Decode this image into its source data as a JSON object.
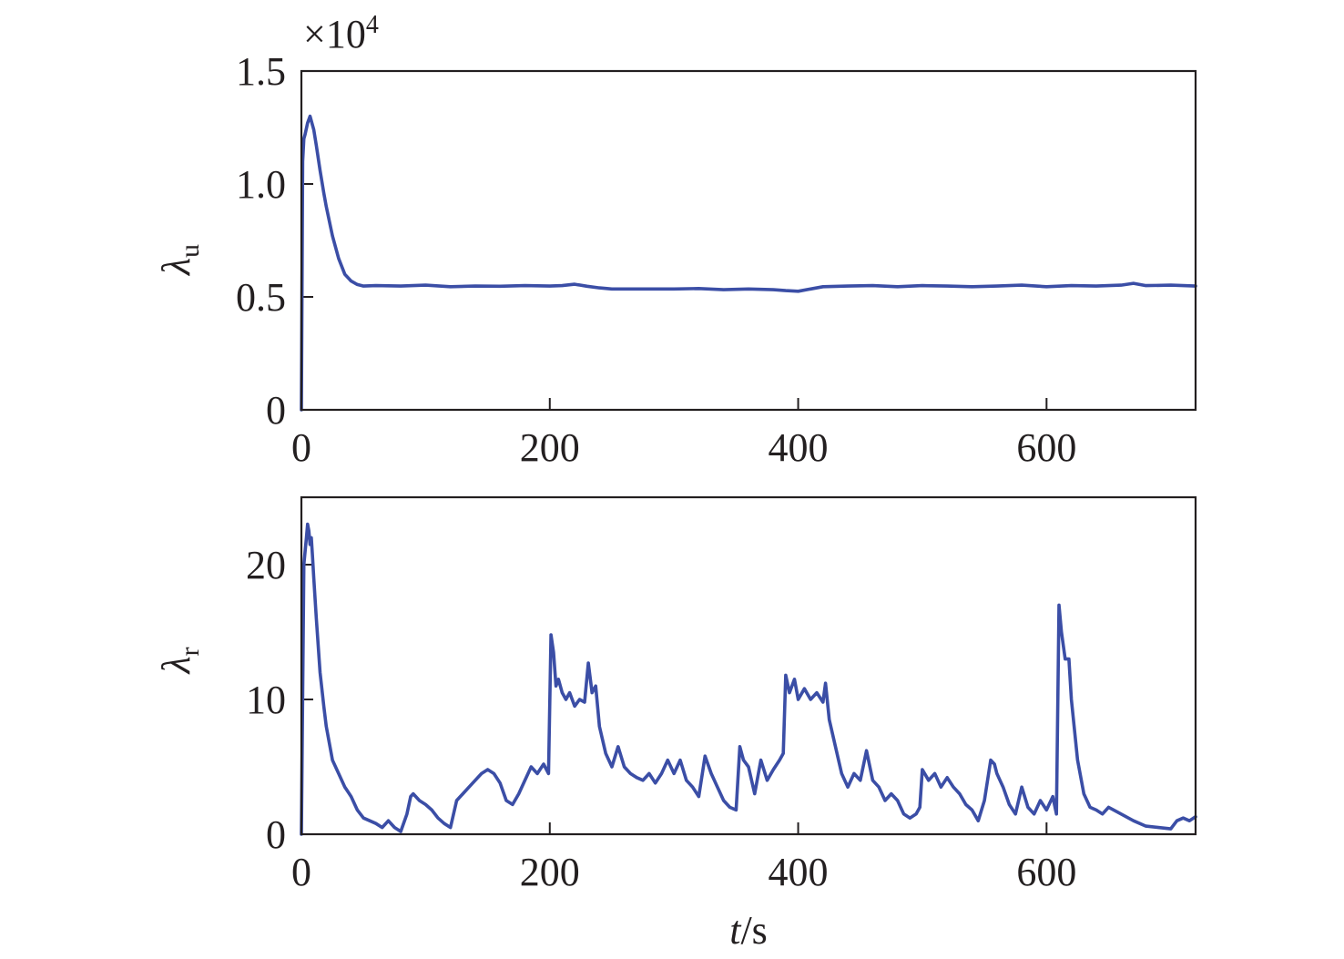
{
  "colors": {
    "series": "#3b4ea6",
    "axis": "#231f20"
  },
  "chart_data": [
    {
      "type": "line",
      "ylabel": "λ",
      "ylabel_sub": "u",
      "multiplier": "×10",
      "multiplier_exp": "4",
      "xlim": [
        0,
        720
      ],
      "ylim": [
        0,
        1.5
      ],
      "xticks": [
        0,
        200,
        400,
        600
      ],
      "xtick_labels": [
        "0",
        "200",
        "400",
        "600"
      ],
      "yticks": [
        0,
        0.5,
        1.0,
        1.5
      ],
      "ytick_labels": [
        "0",
        "0.5",
        "1.0",
        "1.5"
      ],
      "grid": false,
      "series": [
        {
          "x": [
            0,
            1,
            2,
            3,
            5,
            7,
            10,
            12,
            15,
            18,
            20,
            25,
            30,
            35,
            40,
            45,
            50,
            60,
            80,
            100,
            120,
            140,
            160,
            180,
            200,
            210,
            220,
            230,
            240,
            250,
            260,
            280,
            300,
            320,
            340,
            360,
            380,
            390,
            400,
            410,
            420,
            440,
            460,
            480,
            500,
            520,
            540,
            560,
            580,
            600,
            620,
            640,
            660,
            670,
            680,
            700,
            720
          ],
          "y": [
            0,
            1.1,
            1.2,
            1.22,
            1.27,
            1.3,
            1.24,
            1.17,
            1.06,
            0.96,
            0.9,
            0.77,
            0.67,
            0.6,
            0.57,
            0.555,
            0.548,
            0.55,
            0.548,
            0.552,
            0.545,
            0.548,
            0.547,
            0.55,
            0.548,
            0.55,
            0.556,
            0.547,
            0.54,
            0.535,
            0.535,
            0.535,
            0.535,
            0.537,
            0.532,
            0.535,
            0.532,
            0.528,
            0.525,
            0.535,
            0.545,
            0.548,
            0.55,
            0.545,
            0.55,
            0.548,
            0.545,
            0.548,
            0.552,
            0.545,
            0.55,
            0.548,
            0.552,
            0.56,
            0.55,
            0.552,
            0.548
          ]
        }
      ]
    },
    {
      "type": "line",
      "ylabel": "λ",
      "ylabel_sub": "r",
      "xlabel": "t",
      "xlabel_unit": "/s",
      "xlim": [
        0,
        720
      ],
      "ylim": [
        0,
        25
      ],
      "xticks": [
        0,
        200,
        400,
        600
      ],
      "xtick_labels": [
        "0",
        "200",
        "400",
        "600"
      ],
      "yticks": [
        0,
        10,
        20
      ],
      "ytick_labels": [
        "0",
        "10",
        "20"
      ],
      "grid": false,
      "series": [
        {
          "x": [
            0,
            2,
            4,
            5,
            6,
            7,
            8,
            9,
            10,
            12,
            15,
            18,
            20,
            25,
            30,
            35,
            40,
            45,
            50,
            55,
            60,
            65,
            70,
            75,
            80,
            85,
            88,
            90,
            95,
            100,
            105,
            110,
            115,
            120,
            125,
            130,
            135,
            140,
            145,
            150,
            155,
            160,
            165,
            170,
            175,
            180,
            185,
            190,
            195,
            199,
            201,
            203,
            205,
            207,
            210,
            213,
            216,
            220,
            224,
            228,
            231,
            234,
            237,
            240,
            245,
            250,
            255,
            260,
            265,
            270,
            275,
            280,
            285,
            290,
            295,
            300,
            305,
            310,
            315,
            320,
            325,
            330,
            335,
            340,
            345,
            350,
            353,
            356,
            360,
            365,
            370,
            375,
            380,
            385,
            388,
            390,
            393,
            397,
            400,
            405,
            410,
            415,
            420,
            422,
            425,
            430,
            435,
            440,
            445,
            450,
            455,
            460,
            465,
            470,
            475,
            480,
            485,
            490,
            495,
            498,
            500,
            505,
            510,
            515,
            520,
            525,
            530,
            535,
            540,
            545,
            550,
            555,
            558,
            560,
            565,
            570,
            575,
            580,
            585,
            590,
            595,
            600,
            605,
            608,
            610,
            612,
            615,
            618,
            620,
            625,
            630,
            635,
            640,
            645,
            650,
            660,
            670,
            680,
            690,
            700,
            705,
            710,
            715,
            720
          ],
          "y": [
            0,
            20,
            22,
            23,
            22.5,
            21.5,
            22,
            20.5,
            19,
            16,
            12,
            9.5,
            8,
            5.5,
            4.5,
            3.5,
            2.8,
            1.8,
            1.2,
            1.0,
            0.8,
            0.5,
            1.0,
            0.5,
            0.2,
            1.5,
            2.8,
            3.0,
            2.5,
            2.2,
            1.8,
            1.2,
            0.8,
            0.5,
            2.5,
            3.0,
            3.5,
            4.0,
            4.5,
            4.8,
            4.5,
            3.8,
            2.5,
            2.2,
            3.0,
            4.0,
            5.0,
            4.5,
            5.2,
            4.5,
            14.8,
            13.5,
            11.0,
            11.5,
            10.5,
            10.0,
            10.5,
            9.5,
            10.0,
            9.8,
            12.7,
            10.5,
            11.0,
            8.0,
            6.0,
            5.0,
            6.5,
            5.0,
            4.5,
            4.2,
            4.0,
            4.5,
            3.8,
            4.5,
            5.5,
            4.5,
            5.5,
            4.0,
            3.5,
            2.8,
            5.8,
            4.5,
            3.5,
            2.5,
            2.0,
            1.8,
            6.5,
            5.5,
            5.0,
            3.0,
            5.5,
            4.0,
            4.8,
            5.5,
            6.0,
            11.8,
            10.5,
            11.5,
            10.0,
            10.8,
            10.0,
            10.5,
            9.8,
            11.2,
            8.5,
            6.5,
            4.5,
            3.5,
            4.5,
            4.0,
            6.2,
            4.0,
            3.5,
            2.5,
            3.0,
            2.5,
            1.5,
            1.2,
            1.5,
            2.0,
            4.8,
            4.0,
            4.5,
            3.5,
            4.2,
            3.5,
            3.0,
            2.2,
            1.8,
            1.0,
            2.5,
            5.5,
            5.2,
            4.5,
            3.5,
            2.2,
            1.5,
            3.5,
            2.0,
            1.5,
            2.5,
            1.8,
            2.8,
            1.5,
            17.0,
            15.0,
            13.0,
            13.0,
            10.0,
            5.5,
            3.0,
            2.0,
            1.8,
            1.5,
            2.0,
            1.5,
            1.0,
            0.6,
            0.5,
            0.4,
            1.0,
            1.2,
            1.0,
            1.3
          ]
        }
      ]
    }
  ]
}
